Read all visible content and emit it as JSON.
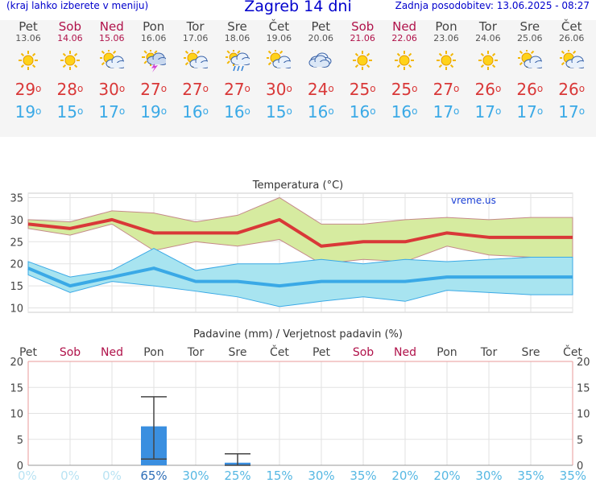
{
  "header": {
    "left_note": "(kraj lahko izberete v meniju)",
    "title": "Zagreb 14 dni",
    "updated": "Zadnja posodobitev: 13.06.2025 - 08:27"
  },
  "days": [
    {
      "name": "Pet",
      "date": "13.06",
      "weekend": false,
      "icon": "sun-icon",
      "tmax": "29",
      "tmin": "19"
    },
    {
      "name": "Sob",
      "date": "14.06",
      "weekend": true,
      "icon": "sun-icon",
      "tmax": "28",
      "tmin": "15"
    },
    {
      "name": "Ned",
      "date": "15.06",
      "weekend": true,
      "icon": "partly-cloudy-icon",
      "tmax": "30",
      "tmin": "17"
    },
    {
      "name": "Pon",
      "date": "16.06",
      "weekend": false,
      "icon": "thunderstorm-icon",
      "tmax": "27",
      "tmin": "19"
    },
    {
      "name": "Tor",
      "date": "17.06",
      "weekend": false,
      "icon": "partly-cloudy-icon",
      "tmax": "27",
      "tmin": "16"
    },
    {
      "name": "Sre",
      "date": "18.06",
      "weekend": false,
      "icon": "sun-rain-icon",
      "tmax": "27",
      "tmin": "16"
    },
    {
      "name": "Čet",
      "date": "19.06",
      "weekend": false,
      "icon": "partly-cloudy-icon",
      "tmax": "30",
      "tmin": "15"
    },
    {
      "name": "Pet",
      "date": "20.06",
      "weekend": false,
      "icon": "cloudy-icon",
      "tmax": "24",
      "tmin": "16"
    },
    {
      "name": "Sob",
      "date": "21.06",
      "weekend": true,
      "icon": "sun-icon",
      "tmax": "25",
      "tmin": "16"
    },
    {
      "name": "Ned",
      "date": "22.06",
      "weekend": true,
      "icon": "sun-icon",
      "tmax": "25",
      "tmin": "16"
    },
    {
      "name": "Pon",
      "date": "23.06",
      "weekend": false,
      "icon": "sun-icon",
      "tmax": "27",
      "tmin": "17"
    },
    {
      "name": "Tor",
      "date": "24.06",
      "weekend": false,
      "icon": "sun-icon",
      "tmax": "26",
      "tmin": "17"
    },
    {
      "name": "Sre",
      "date": "25.06",
      "weekend": false,
      "icon": "partly-cloudy-icon",
      "tmax": "26",
      "tmin": "17"
    },
    {
      "name": "Čet",
      "date": "26.06",
      "weekend": false,
      "icon": "partly-cloudy-icon",
      "tmax": "26",
      "tmin": "17"
    }
  ],
  "colors": {
    "tmax": "#d93838",
    "tmin": "#3aa9e6",
    "weekend": "#b0124a",
    "max_band": "#d6eba0",
    "min_band": "#a8e4f0",
    "bar": "#3a8fe0",
    "prob_low": "#a8dcf0",
    "prob_high": "#2f6fb8"
  },
  "chart_data": [
    {
      "type": "line",
      "title": "Temperatura (°C)",
      "watermark": "vreme.us",
      "x": [
        "13.06",
        "14.06",
        "15.06",
        "16.06",
        "17.06",
        "18.06",
        "19.06",
        "20.06",
        "21.06",
        "22.06",
        "23.06",
        "24.06",
        "25.06",
        "26.06"
      ],
      "ylim": [
        9,
        36
      ],
      "yticks": [
        "10",
        "15",
        "20",
        "25",
        "30",
        "35"
      ],
      "grid": true,
      "series": [
        {
          "key": "tmax",
          "values": [
            29,
            28,
            30,
            27,
            27,
            27,
            30,
            24,
            25,
            25,
            27,
            26,
            26,
            26
          ]
        },
        {
          "key": "tmin",
          "values": [
            19,
            15,
            17,
            19,
            16,
            16,
            15,
            16,
            16,
            16,
            17,
            17,
            17,
            17
          ]
        }
      ],
      "band_max": {
        "upper": [
          30,
          29.5,
          32,
          31.5,
          29.5,
          31,
          35,
          29,
          29,
          30,
          30.5,
          30,
          30.5,
          30.5
        ],
        "lower": [
          28,
          26.5,
          29,
          23,
          25,
          24,
          25.5,
          20,
          21,
          20.5,
          24,
          22,
          21.5,
          21.5
        ]
      },
      "band_min": {
        "upper": [
          20.5,
          17,
          18.5,
          23.5,
          18.5,
          20,
          20,
          21,
          20,
          21,
          20.5,
          21,
          21.5,
          21.5
        ],
        "lower": [
          17.5,
          13.5,
          16,
          15,
          13.8,
          12.5,
          10.3,
          11.5,
          12.5,
          11.5,
          14,
          13.5,
          13,
          13
        ]
      }
    },
    {
      "type": "bar",
      "title": "Padavine (mm) / Verjetnost padavin (%)",
      "categories": [
        "Pet",
        "Sob",
        "Ned",
        "Pon",
        "Tor",
        "Sre",
        "Čet",
        "Pet",
        "Sob",
        "Ned",
        "Pon",
        "Tor",
        "Sre",
        "Čet"
      ],
      "weekend": [
        false,
        true,
        true,
        false,
        false,
        false,
        false,
        false,
        true,
        true,
        false,
        false,
        false,
        false
      ],
      "values": [
        0,
        0,
        0,
        7.5,
        0,
        0.5,
        0,
        0,
        0,
        0,
        0,
        0,
        0,
        0
      ],
      "error_low": [
        null,
        null,
        null,
        1.2,
        null,
        0,
        null,
        null,
        null,
        null,
        null,
        null,
        null,
        null
      ],
      "error_high": [
        null,
        null,
        null,
        13.2,
        null,
        2.2,
        null,
        null,
        null,
        null,
        null,
        null,
        null,
        null
      ],
      "probability": [
        "0%",
        "0%",
        "0%",
        "65%",
        "30%",
        "25%",
        "15%",
        "30%",
        "35%",
        "20%",
        "20%",
        "30%",
        "35%",
        "35%"
      ],
      "ylim": [
        0,
        20
      ],
      "yticks": [
        "0",
        "5",
        "10",
        "15",
        "20"
      ],
      "grid": true
    }
  ]
}
